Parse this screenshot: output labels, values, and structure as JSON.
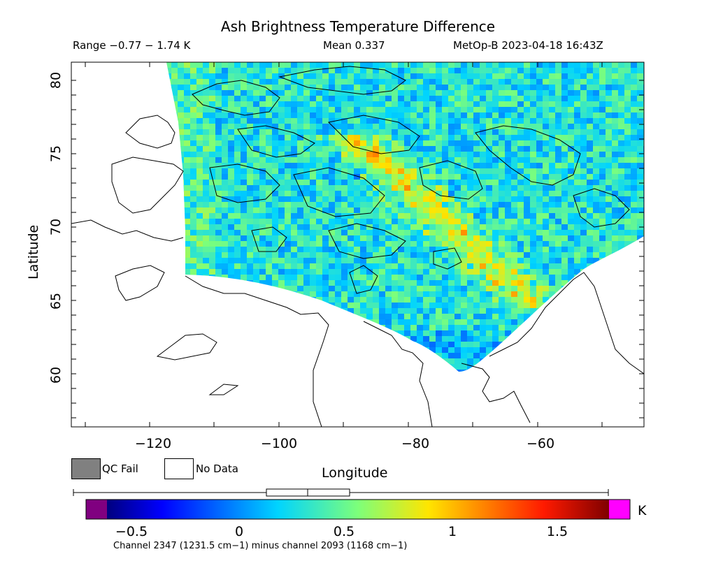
{
  "header": {
    "title": "Ash Brightness Temperature Difference",
    "range": "Range −0.77 − 1.74 K",
    "mean": "Mean 0.337",
    "satellite": "MetOp-B 2023-04-18 16:43Z"
  },
  "axes": {
    "xlabel": "Longitude",
    "ylabel": "Latitude",
    "xticks": [
      "−120",
      "−100",
      "−80",
      "−60"
    ],
    "yticks": [
      "80",
      "75",
      "70",
      "65",
      "60"
    ]
  },
  "legend": {
    "qc_fail": "QC Fail",
    "no_data": "No Data",
    "qc_fail_color": "#808080",
    "no_data_color": "#ffffff"
  },
  "colorbar": {
    "ticks": [
      "−0.5",
      "0",
      "0.5",
      "1",
      "1.5"
    ],
    "unit": "K",
    "underflow_color": "#800080",
    "overflow_color": "#ff00ff",
    "min": -0.77,
    "max": 1.74,
    "mean": 0.337
  },
  "footer": {
    "channel_note": "Channel 2347 (1231.5 cm−1) minus channel 2093 (1168 cm−1)"
  },
  "map": {
    "lon_range": [
      -132,
      -44
    ],
    "lat_range": [
      56.5,
      81
    ]
  }
}
